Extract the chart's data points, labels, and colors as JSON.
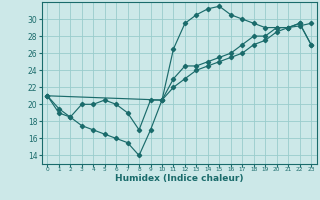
{
  "xlabel": "Humidex (Indice chaleur)",
  "bg_color": "#cce8e8",
  "grid_color": "#99cccc",
  "line_color": "#1a6b6b",
  "xlim": [
    -0.5,
    23.5
  ],
  "ylim": [
    13,
    32
  ],
  "yticks": [
    14,
    16,
    18,
    20,
    22,
    24,
    26,
    28,
    30
  ],
  "xticks": [
    0,
    1,
    2,
    3,
    4,
    5,
    6,
    7,
    8,
    9,
    10,
    11,
    12,
    13,
    14,
    15,
    16,
    17,
    18,
    19,
    20,
    21,
    22,
    23
  ],
  "line1_x": [
    0,
    1,
    2,
    3,
    4,
    5,
    6,
    7,
    8,
    9,
    10,
    11,
    12,
    13,
    14,
    15,
    16,
    17,
    18,
    19,
    20,
    21,
    22,
    23
  ],
  "line1_y": [
    21,
    19,
    18.5,
    17.5,
    17,
    16.5,
    16,
    15.5,
    14,
    17,
    20.5,
    26.5,
    29.5,
    30.5,
    31.2,
    31.5,
    30.5,
    30,
    29.5,
    29,
    29,
    29,
    29.2,
    29.5
  ],
  "line2_x": [
    0,
    1,
    2,
    3,
    4,
    5,
    6,
    7,
    8,
    9,
    10,
    11,
    12,
    13,
    14,
    15,
    16,
    17,
    18,
    19,
    20,
    21,
    22,
    23
  ],
  "line2_y": [
    21,
    19.5,
    18.5,
    20,
    20,
    20.5,
    20,
    19,
    17,
    20.5,
    20.5,
    23,
    24.5,
    24.5,
    25,
    25.5,
    26,
    27,
    28,
    28,
    29,
    29,
    29.5,
    27
  ],
  "line3_x": [
    0,
    10,
    11,
    12,
    13,
    14,
    15,
    16,
    17,
    18,
    19,
    20,
    21,
    22,
    23
  ],
  "line3_y": [
    21,
    20.5,
    22,
    23,
    24,
    24.5,
    25,
    25.5,
    26,
    27,
    27.5,
    28.5,
    29,
    29.5,
    27
  ]
}
